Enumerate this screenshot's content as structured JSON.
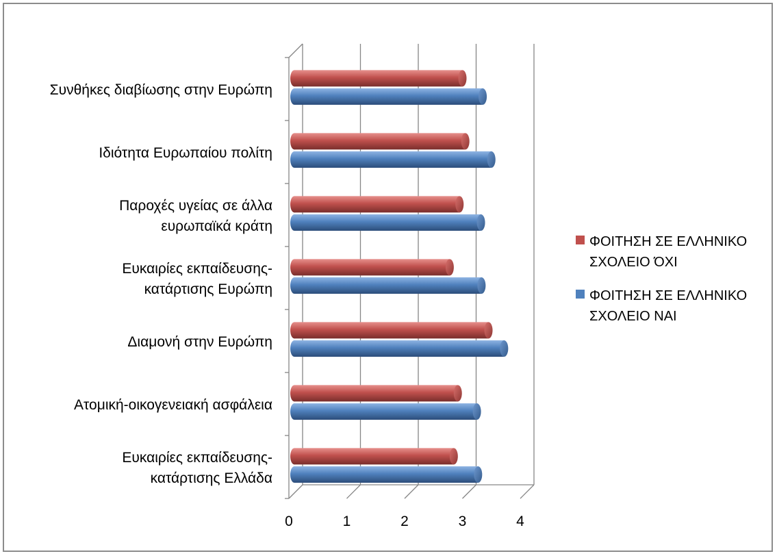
{
  "chart_data": {
    "type": "bar",
    "orientation": "horizontal",
    "style": "3d-cylinder",
    "categories": [
      [
        "Συνθήκες διαβίωσης στην Ευρώπη"
      ],
      [
        "Ιδιότητα Ευρωπαίου πολίτη"
      ],
      [
        "Παροχές υγείας σε άλλα",
        "ευρωπαϊκά κράτη"
      ],
      [
        "Ευκαιρίες εκπαίδευσης-",
        "κατάρτισης Ευρώπη"
      ],
      [
        "Διαμονή στην Ευρώπη"
      ],
      [
        "Ατομική-οικογενειακή ασφάλεια"
      ],
      [
        "Ευκαιρίες εκπαίδευσης-",
        "κατάρτισης Ελλάδα"
      ]
    ],
    "series": [
      {
        "name_lines": [
          "ΦΟΙΤΗΣΗ ΣΕ ΕΛΛΗΝΙΚΟ",
          "ΣΧΟΛΕΙΟ ΌΧΙ"
        ],
        "color": "#c0504d",
        "values": [
          3.0,
          3.05,
          2.95,
          2.78,
          3.45,
          2.92,
          2.85
        ]
      },
      {
        "name_lines": [
          "ΦΟΙΤΗΣΗ ΣΕ ΕΛΛΗΝΙΚΟ",
          "ΣΧΟΛΕΙΟ ΝΑΙ"
        ],
        "color": "#4f81bd",
        "values": [
          3.35,
          3.5,
          3.32,
          3.33,
          3.72,
          3.25,
          3.27
        ]
      }
    ],
    "xlim": [
      0,
      4
    ],
    "xticks": [
      "0",
      "1",
      "2",
      "3",
      "4"
    ],
    "grid": true,
    "legend_position": "right"
  }
}
